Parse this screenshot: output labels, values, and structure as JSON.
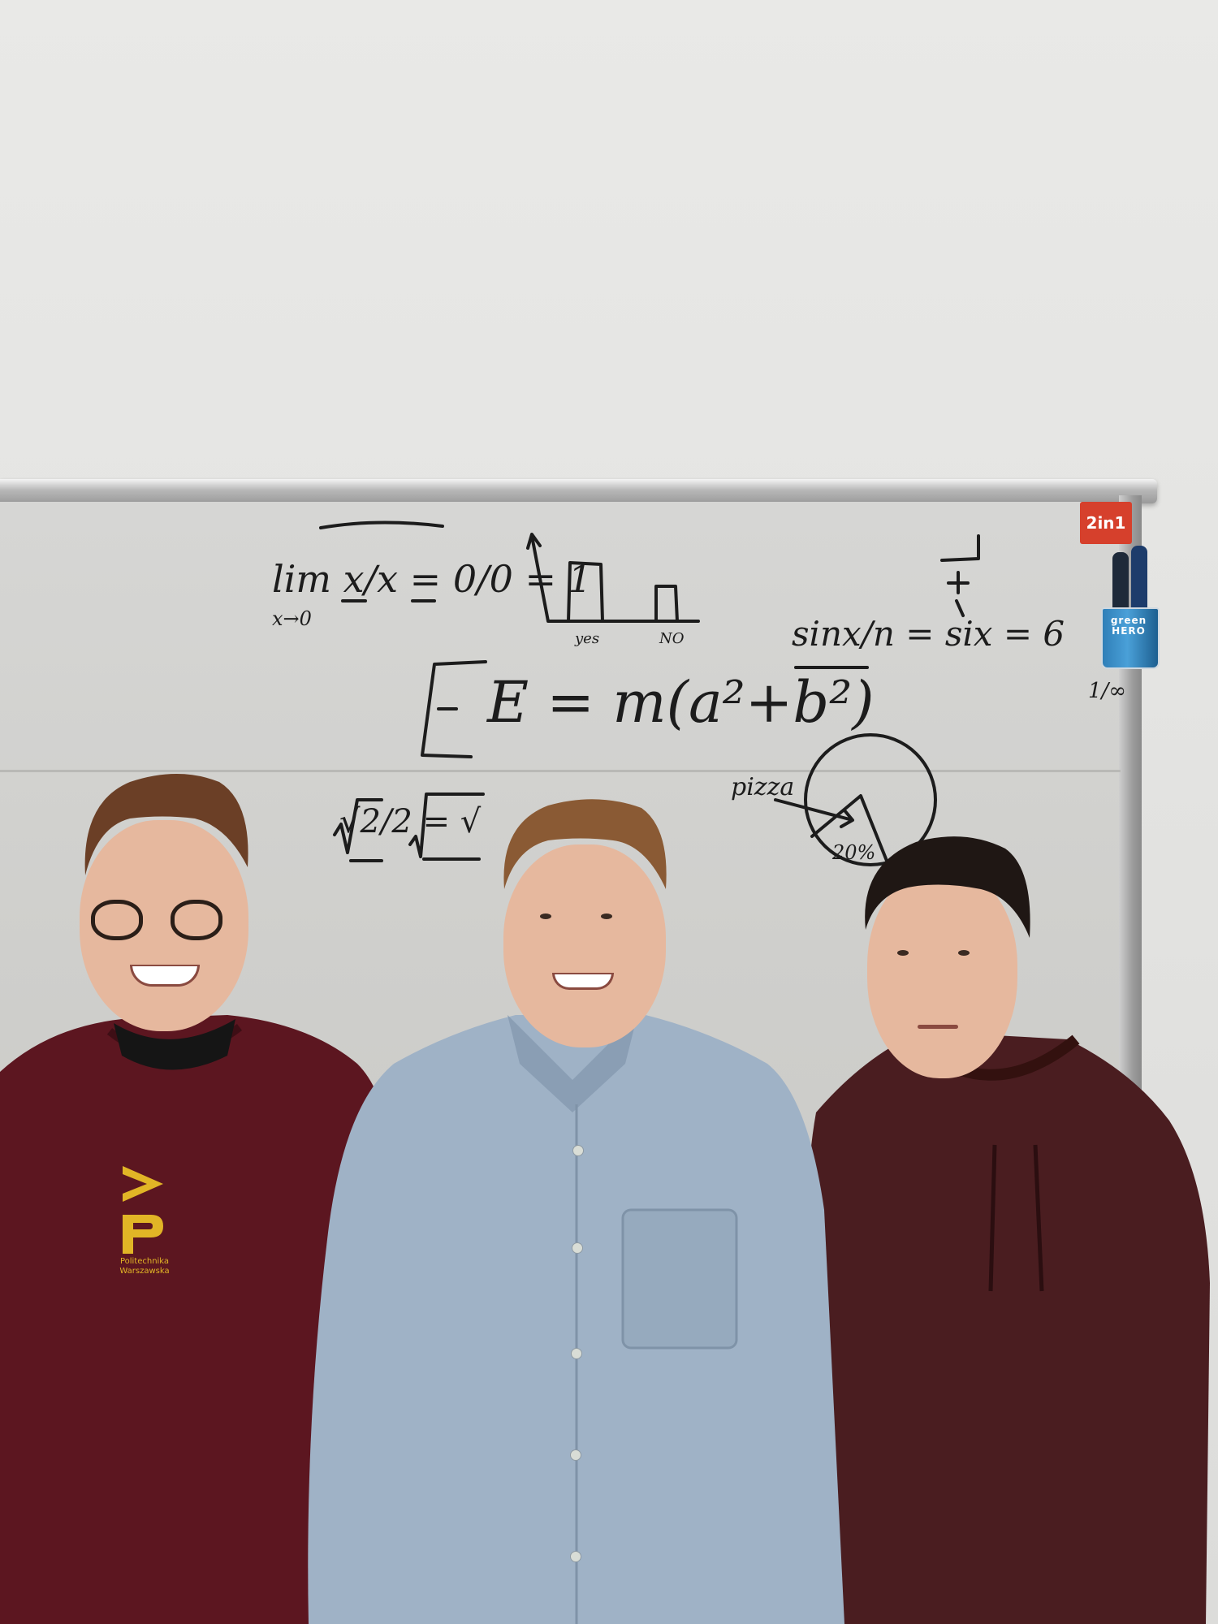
{
  "scene": {
    "wall_color": "#e4e4e2",
    "board_color": "#cfcfcc"
  },
  "whiteboard": {
    "limit_eq": "lim  x/x = 0/0 = 1",
    "limit_sub": "x→0",
    "bar_labels": [
      "yes",
      "NO"
    ],
    "sinx_eq": "sinx/n = six = 6",
    "energy_eq": "E = m(a²+b²)",
    "root_eq": "√2/2 = √",
    "pie_label": "pizza",
    "pie_percent": "20%",
    "side_glyph": "1/∞"
  },
  "props": {
    "sticker_text": "2in1",
    "cup_brand": "green",
    "cup_brand_sub": "HERO"
  },
  "people": {
    "left_shirt_logo_text": "Politechnika Warszawska"
  }
}
